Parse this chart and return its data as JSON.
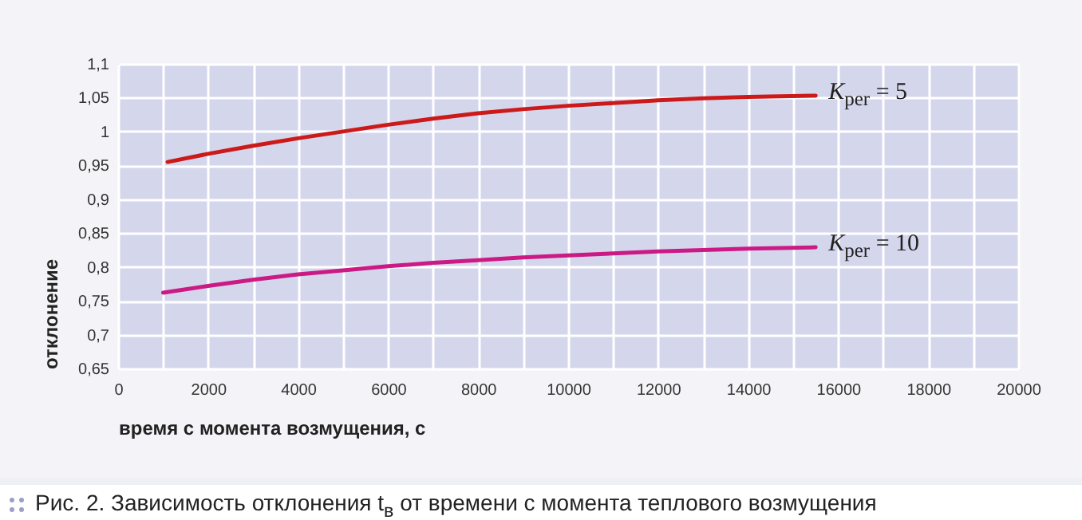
{
  "chart_data": {
    "type": "line",
    "xlabel": "время с момента возмущения, с",
    "ylabel": "отклонение",
    "annotations": [
      "Рис. 2. Зависимость отклонения t$_{в}$ от времени с момента теплового возмущения"
    ],
    "series": [
      {
        "name": "K$_{per}$ = 5",
        "color": "#cc1a1a",
        "x": [
          1100,
          2000,
          3000,
          4000,
          5000,
          6000,
          7000,
          8000,
          9000,
          10000,
          11000,
          12000,
          13000,
          14000,
          15500
        ],
        "values": [
          0.955,
          0.967,
          0.979,
          0.99,
          1.0,
          1.01,
          1.019,
          1.027,
          1.033,
          1.038,
          1.042,
          1.046,
          1.049,
          1.051,
          1.053
        ]
      },
      {
        "name": "K$_{per}$ = 10",
        "color": "#cc1a85",
        "x": [
          1000,
          2000,
          3000,
          4000,
          5000,
          6000,
          7000,
          8000,
          9000,
          10000,
          11000,
          12000,
          13000,
          14000,
          15500
        ],
        "values": [
          0.762,
          0.772,
          0.781,
          0.789,
          0.795,
          0.801,
          0.806,
          0.81,
          0.814,
          0.817,
          0.82,
          0.823,
          0.825,
          0.827,
          0.829
        ]
      }
    ],
    "xlim": [
      0,
      20000
    ],
    "ylim": [
      0.65,
      1.1
    ],
    "xticks": [
      0,
      {
        "value": 1000,
        "label": null
      },
      2000,
      {
        "value": 3000,
        "label": null
      },
      4000,
      {
        "value": 5000,
        "label": null
      },
      6000,
      {
        "value": 7000,
        "label": null
      },
      8000,
      {
        "value": 9000,
        "label": null
      },
      10000,
      {
        "value": 11000,
        "label": null
      },
      12000,
      {
        "value": 13000,
        "label": null
      },
      14000,
      {
        "value": 15000,
        "label": null
      },
      16000,
      {
        "value": 17000,
        "label": null
      },
      18000,
      {
        "value": 19000,
        "label": null
      },
      20000
    ],
    "yticks": [
      {
        "value": 0.65,
        "label": "0,65"
      },
      {
        "value": 0.7,
        "label": "0,7"
      },
      {
        "value": 0.75,
        "label": "0,75"
      },
      {
        "value": 0.8,
        "label": "0,8"
      },
      {
        "value": 0.85,
        "label": "0,85"
      },
      {
        "value": 0.9,
        "label": "0,9"
      },
      {
        "value": 0.95,
        "label": "0,95"
      },
      {
        "value": 1,
        "label": "1"
      },
      {
        "value": 1.05,
        "label": "1,05"
      },
      {
        "value": 1.1,
        "label": "1,1"
      }
    ],
    "grid": true
  }
}
